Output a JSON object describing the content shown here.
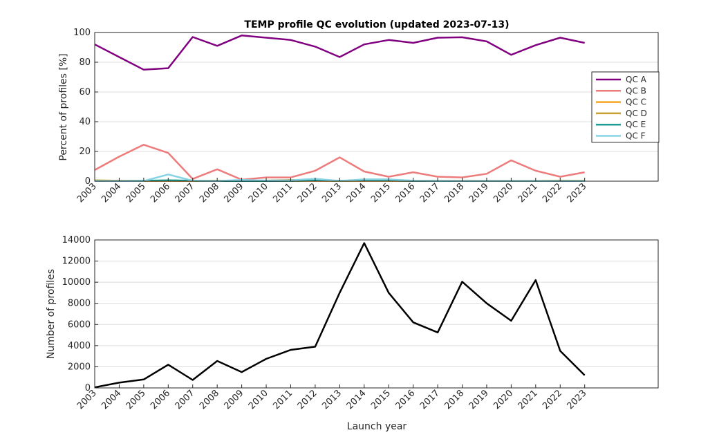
{
  "chart_data": [
    {
      "type": "line",
      "title": "TEMP profile QC evolution (updated 2023-07-13)",
      "xlabel": "",
      "ylabel": "Percent of profiles [%]",
      "x": [
        2003,
        2004,
        2005,
        2006,
        2007,
        2008,
        2009,
        2010,
        2011,
        2012,
        2013,
        2014,
        2015,
        2016,
        2017,
        2018,
        2019,
        2020,
        2021,
        2022,
        2023
      ],
      "xlim": [
        2003,
        2026
      ],
      "ylim": [
        0,
        100
      ],
      "yticks": [
        0,
        20,
        40,
        60,
        80,
        100
      ],
      "grid": true,
      "legend_position": "right",
      "series": [
        {
          "name": "QC A",
          "color": "#800080",
          "values": [
            92,
            83.5,
            75,
            76,
            97,
            91,
            98,
            96.5,
            95,
            90.5,
            83.5,
            92,
            95,
            93,
            96.5,
            96.8,
            94,
            85,
            91.5,
            96.5,
            93
          ]
        },
        {
          "name": "QC B",
          "color": "#ee7b7b",
          "values": [
            7.5,
            16.5,
            24.5,
            19,
            1.5,
            8,
            1,
            2.5,
            2.5,
            7,
            16,
            6.5,
            3,
            6,
            3,
            2.5,
            5,
            14,
            7,
            3,
            6
          ]
        },
        {
          "name": "QC C",
          "color": "#f5a623",
          "values": [
            0.3,
            0.3,
            0.2,
            0.2,
            0.2,
            0.2,
            0.2,
            0.2,
            0.2,
            0.2,
            0.2,
            0.2,
            0.2,
            0.2,
            0.2,
            0.2,
            0.2,
            0.2,
            0.2,
            0.2,
            0.3
          ]
        },
        {
          "name": "QC D",
          "color": "#c8a02e",
          "values": [
            0.6,
            0.3,
            0.2,
            0.3,
            0.2,
            0.3,
            0.2,
            0.4,
            0.8,
            0.4,
            0.2,
            0.3,
            0.3,
            0.2,
            0.2,
            0.2,
            0.2,
            0.2,
            0.2,
            0.4,
            0.3
          ]
        },
        {
          "name": "QC E",
          "color": "#1a9e96",
          "values": [
            0.1,
            0.1,
            0.3,
            0.6,
            0.3,
            0.1,
            0.1,
            0.1,
            0.2,
            0.4,
            0.3,
            0.4,
            0.4,
            0.2,
            0.1,
            0.1,
            0.1,
            0.1,
            0.1,
            0.1,
            0.1
          ]
        },
        {
          "name": "QC F",
          "color": "#86d3e3",
          "values": [
            0.1,
            0.1,
            0.1,
            4.5,
            0.3,
            0.1,
            0.8,
            0.4,
            0.6,
            1.6,
            0.2,
            1.2,
            1.2,
            0.3,
            0.2,
            0.2,
            0.2,
            0.2,
            0.2,
            0.2,
            0.2
          ]
        }
      ]
    },
    {
      "type": "line",
      "title": "",
      "xlabel": "Launch year",
      "ylabel": "Number of profiles",
      "x": [
        2003,
        2004,
        2005,
        2006,
        2007,
        2008,
        2009,
        2010,
        2011,
        2012,
        2013,
        2014,
        2015,
        2016,
        2017,
        2018,
        2019,
        2020,
        2021,
        2022,
        2023
      ],
      "xlim": [
        2003,
        2026
      ],
      "ylim": [
        0,
        14000
      ],
      "yticks": [
        0,
        2000,
        4000,
        6000,
        8000,
        10000,
        12000,
        14000
      ],
      "grid": true,
      "series": [
        {
          "name": "",
          "color": "#000000",
          "values": [
            50,
            500,
            800,
            2200,
            750,
            2550,
            1500,
            2750,
            3600,
            3900,
            9000,
            13700,
            9000,
            6200,
            5250,
            10050,
            8000,
            6350,
            10200,
            3500,
            1200
          ]
        }
      ]
    }
  ]
}
